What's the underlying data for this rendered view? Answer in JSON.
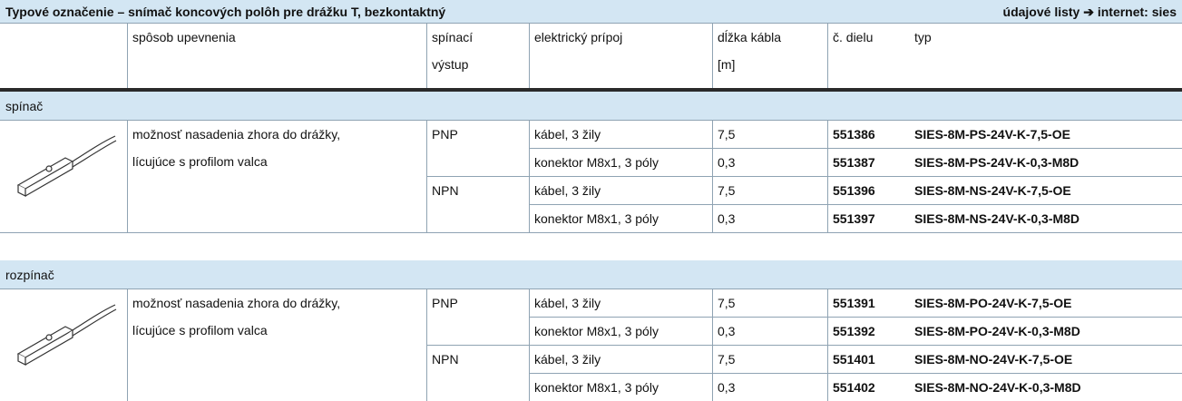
{
  "header": {
    "title": "Typové označenie – snímač koncových polôh pre drážku T, bezkontaktný",
    "link": "údajové listy ➔ internet: sies"
  },
  "columns": [
    [
      "spôsob upevnenia"
    ],
    [
      "spínací",
      "výstup"
    ],
    [
      "elektrický prípoj"
    ],
    [
      "dĺžka kábla",
      "[m]"
    ],
    [
      "č. dielu"
    ],
    [
      "typ"
    ]
  ],
  "sections": [
    {
      "name": "spínač",
      "mounting": [
        "možnosť nasadenia zhora do drážky,",
        "lícujúce s profilom valca"
      ],
      "outputs": [
        {
          "name": "PNP",
          "rows": [
            {
              "connection": "kábel, 3 žily",
              "length": "7,5",
              "part": 551386,
              "type": "SIES-8M-PS-24V-K-7,5-OE"
            },
            {
              "connection": "konektor M8x1, 3 póly",
              "length": "0,3",
              "part": 551387,
              "type": "SIES-8M-PS-24V-K-0,3-M8D"
            }
          ]
        },
        {
          "name": "NPN",
          "rows": [
            {
              "connection": "kábel, 3 žily",
              "length": "7,5",
              "part": 551396,
              "type": "SIES-8M-NS-24V-K-7,5-OE"
            },
            {
              "connection": "konektor M8x1, 3 póly",
              "length": "0,3",
              "part": 551397,
              "type": "SIES-8M-NS-24V-K-0,3-M8D"
            }
          ]
        }
      ]
    },
    {
      "name": "rozpínač",
      "mounting": [
        "možnosť nasadenia zhora do drážky,",
        "lícujúce s profilom valca"
      ],
      "outputs": [
        {
          "name": "PNP",
          "rows": [
            {
              "connection": "kábel, 3 žily",
              "length": "7,5",
              "part": 551391,
              "type": "SIES-8M-PO-24V-K-7,5-OE"
            },
            {
              "connection": "konektor M8x1, 3 póly",
              "length": "0,3",
              "part": 551392,
              "type": "SIES-8M-PO-24V-K-0,3-M8D"
            }
          ]
        },
        {
          "name": "NPN",
          "rows": [
            {
              "connection": "kábel, 3 žily",
              "length": "7,5",
              "part": 551401,
              "type": "SIES-8M-NO-24V-K-7,5-OE"
            },
            {
              "connection": "konektor M8x1, 3 póly",
              "length": "0,3",
              "part": 551402,
              "type": "SIES-8M-NO-24V-K-0,3-M8D"
            }
          ]
        }
      ]
    }
  ]
}
